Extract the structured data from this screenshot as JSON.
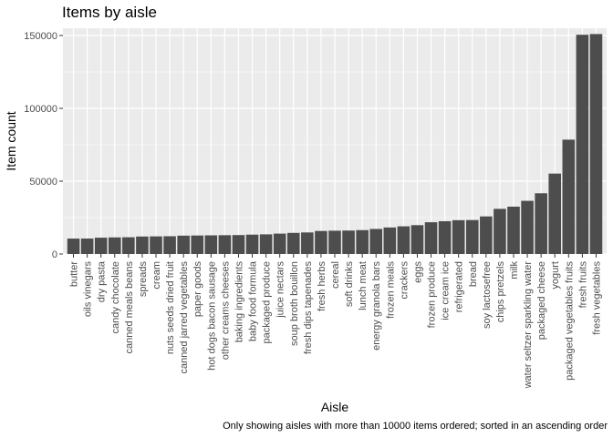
{
  "chart_data": {
    "type": "bar",
    "title": "Items by aisle",
    "xlabel": "Aisle",
    "ylabel": "Item count",
    "caption": "Only showing aisles with more than 10000 items ordered; sorted in an ascending order",
    "ylim": [
      0,
      155000
    ],
    "yticks": [
      0,
      50000,
      100000,
      150000
    ],
    "ytick_labels": [
      "0",
      "50000",
      "100000",
      "150000"
    ],
    "bar_color": "#4d4d4d",
    "panel_color": "#ebebeb",
    "grid": true,
    "categories": [
      "butter",
      "oils vinegars",
      "dry pasta",
      "candy chocolate",
      "canned meals beans",
      "spreads",
      "cream",
      "nuts seeds dried fruit",
      "canned jarred vegetables",
      "paper goods",
      "hot dogs bacon sausage",
      "other creams cheeses",
      "baking ingredients",
      "baby food formula",
      "packaged produce",
      "juice nectars",
      "soup broth bouillon",
      "fresh dips tapenades",
      "fresh herbs",
      "cereal",
      "soft drinks",
      "lunch meat",
      "energy granola bars",
      "frozen meals",
      "crackers",
      "eggs",
      "frozen produce",
      "ice cream ice",
      "refrigerated",
      "bread",
      "soy lactosefree",
      "chips pretzels",
      "milk",
      "water seltzer sparkling water",
      "packaged cheese",
      "yogurt",
      "packaged vegetables fruits",
      "fresh fruits",
      "fresh vegetables"
    ],
    "values": [
      10575,
      10600,
      11200,
      11400,
      11500,
      12000,
      12100,
      12200,
      12600,
      12700,
      12800,
      12900,
      13000,
      13300,
      13500,
      14000,
      14500,
      14800,
      15800,
      16000,
      16100,
      16400,
      17200,
      18200,
      19000,
      19800,
      21800,
      22500,
      23200,
      23300,
      25800,
      31000,
      32500,
      36500,
      41700,
      55200,
      78500,
      150500,
      151000
    ]
  }
}
